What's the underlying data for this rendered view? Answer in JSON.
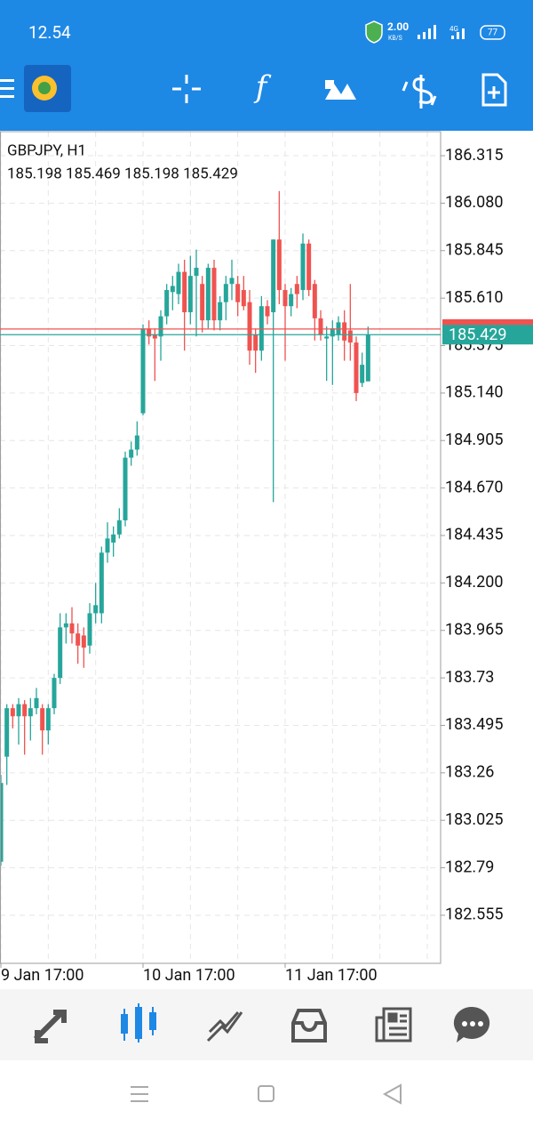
{
  "status_bar": {
    "time": "12.54",
    "speed": "2.00",
    "speed_unit": "KB/S",
    "network": "4G",
    "battery": "77"
  },
  "toolbar": {
    "function_icon": "f"
  },
  "chart_data": {
    "type": "candlestick",
    "title": "GBPJPY, H1",
    "subtitle": "185.198 185.469 185.198 185.429",
    "categories": [
      "9 Jan 17:00",
      null,
      null,
      null,
      null,
      null,
      null,
      null,
      null,
      null,
      null,
      null,
      null,
      null,
      null,
      null,
      null,
      null,
      null,
      null,
      null,
      null,
      null,
      null,
      "10 Jan 17:00",
      null,
      null,
      null,
      null,
      null,
      null,
      null,
      null,
      null,
      null,
      null,
      null,
      null,
      null,
      null,
      null,
      null,
      null,
      null,
      null,
      null,
      null,
      null,
      "11 Jan 17:00",
      null,
      null,
      null,
      null,
      null,
      null,
      null,
      null,
      null,
      null,
      null,
      null,
      null,
      null
    ],
    "open": [
      182.82,
      183.34,
      183.58,
      183.54,
      183.6,
      183.54,
      183.58,
      183.58,
      183.47,
      183.58,
      183.73,
      183.98,
      184.0,
      183.95,
      183.94,
      183.89,
      184.05,
      184.05,
      184.35,
      184.4,
      184.44,
      184.51,
      184.82,
      184.86,
      185.04,
      185.46,
      185.43,
      185.42,
      185.52,
      185.64,
      185.63,
      185.74,
      185.54,
      185.72,
      185.68,
      185.5,
      185.76,
      185.5,
      185.59,
      185.68,
      185.68,
      185.65,
      185.59,
      185.43,
      185.35,
      185.57,
      185.54,
      185.9,
      185.65,
      185.57,
      185.68,
      185.65,
      185.88,
      185.68,
      185.51,
      185.41,
      185.42,
      185.43,
      185.49,
      185.45,
      185.39,
      185.19,
      185.198
    ],
    "high": [
      183.25,
      183.6,
      183.6,
      183.63,
      183.62,
      183.63,
      183.68,
      183.6,
      183.6,
      183.75,
      184.05,
      184.05,
      184.08,
      184.0,
      183.98,
      184.1,
      184.2,
      184.38,
      184.5,
      184.48,
      184.57,
      184.85,
      184.9,
      185.0,
      185.48,
      185.5,
      185.46,
      185.55,
      185.68,
      185.72,
      185.78,
      185.8,
      185.82,
      185.85,
      185.72,
      185.78,
      185.8,
      185.62,
      185.72,
      185.8,
      185.72,
      185.72,
      185.65,
      185.46,
      185.62,
      185.6,
      185.9,
      186.14,
      185.68,
      185.66,
      185.72,
      185.93,
      185.9,
      185.7,
      185.55,
      185.47,
      185.5,
      185.52,
      185.55,
      185.68,
      185.42,
      185.34,
      185.469
    ],
    "low": [
      182.8,
      183.2,
      183.48,
      183.4,
      183.35,
      183.42,
      183.55,
      183.35,
      183.4,
      183.55,
      183.7,
      183.9,
      183.9,
      183.8,
      183.78,
      183.85,
      184.0,
      184.0,
      184.3,
      184.33,
      184.42,
      184.48,
      184.78,
      184.83,
      185.03,
      185.38,
      185.2,
      185.3,
      185.48,
      185.55,
      185.58,
      185.35,
      185.48,
      185.42,
      185.44,
      185.46,
      185.45,
      185.45,
      185.5,
      185.6,
      185.52,
      185.55,
      185.28,
      185.24,
      185.3,
      185.48,
      184.6,
      185.58,
      185.3,
      185.52,
      185.56,
      185.6,
      185.62,
      185.4,
      185.4,
      185.2,
      185.18,
      185.4,
      185.3,
      185.3,
      185.1,
      185.17,
      185.198
    ],
    "close": [
      183.21,
      183.58,
      183.54,
      183.6,
      183.54,
      183.58,
      183.63,
      183.47,
      183.58,
      183.73,
      183.98,
      184.0,
      183.95,
      183.89,
      183.88,
      184.05,
      184.09,
      184.35,
      184.42,
      184.44,
      184.51,
      184.82,
      184.86,
      184.93,
      185.46,
      185.42,
      185.41,
      185.52,
      185.65,
      185.67,
      185.74,
      185.54,
      185.72,
      185.76,
      185.5,
      185.76,
      185.5,
      185.59,
      185.68,
      185.71,
      185.59,
      185.57,
      185.35,
      185.35,
      185.57,
      185.52,
      185.9,
      185.65,
      185.57,
      185.63,
      185.63,
      185.88,
      185.65,
      185.51,
      185.43,
      185.42,
      185.46,
      185.49,
      185.4,
      185.39,
      185.14,
      185.28,
      185.429
    ],
    "up_color": "#26a69a",
    "down_color": "#ef5350",
    "ask": 185.457,
    "bid": 185.429,
    "ylim": [
      182.317,
      186.434
    ],
    "yticks": [
      186.315,
      {
        "value": 186.08,
        "label": "186.080"
      },
      185.845,
      {
        "value": 185.61,
        "label": "185.610"
      },
      185.375,
      {
        "value": 185.14,
        "label": "185.140"
      },
      184.905,
      {
        "value": 184.67,
        "label": "184.670"
      },
      184.435,
      {
        "value": 184.2,
        "label": "184.200"
      },
      183.965,
      183.73,
      183.495,
      183.26,
      183.025,
      182.79,
      182.555
    ],
    "grid": true
  }
}
